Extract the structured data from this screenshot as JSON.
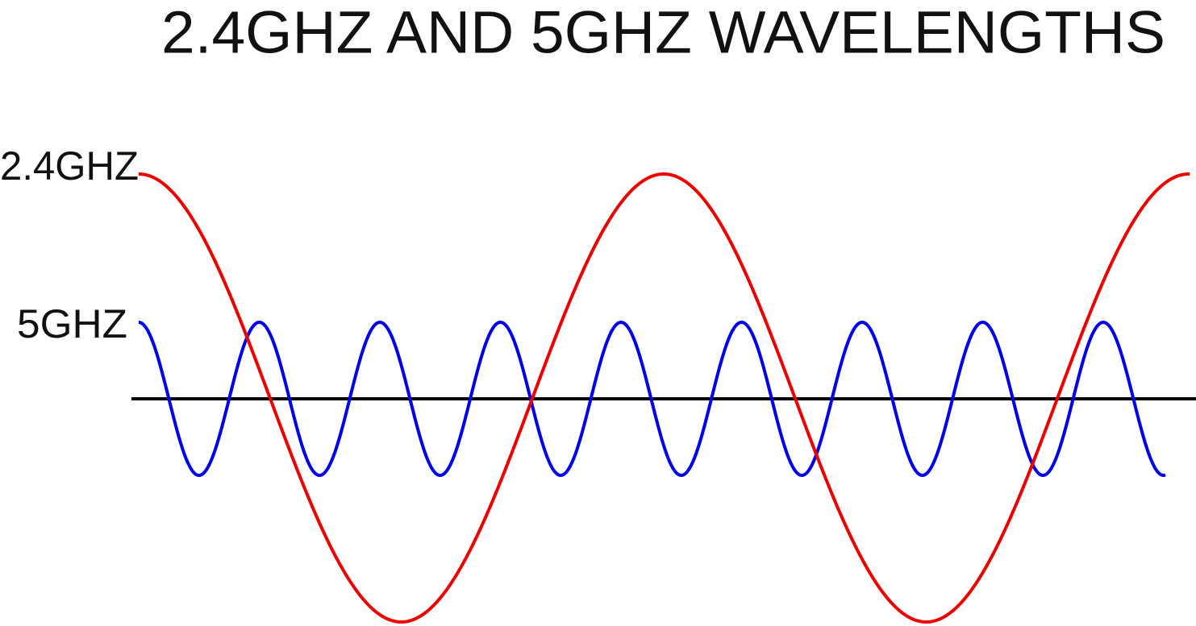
{
  "title": "2.4GHZ AND 5GHZ WAVELENGTHS",
  "labels": [
    "2.4GHZ",
    "5GHZ"
  ]
}
